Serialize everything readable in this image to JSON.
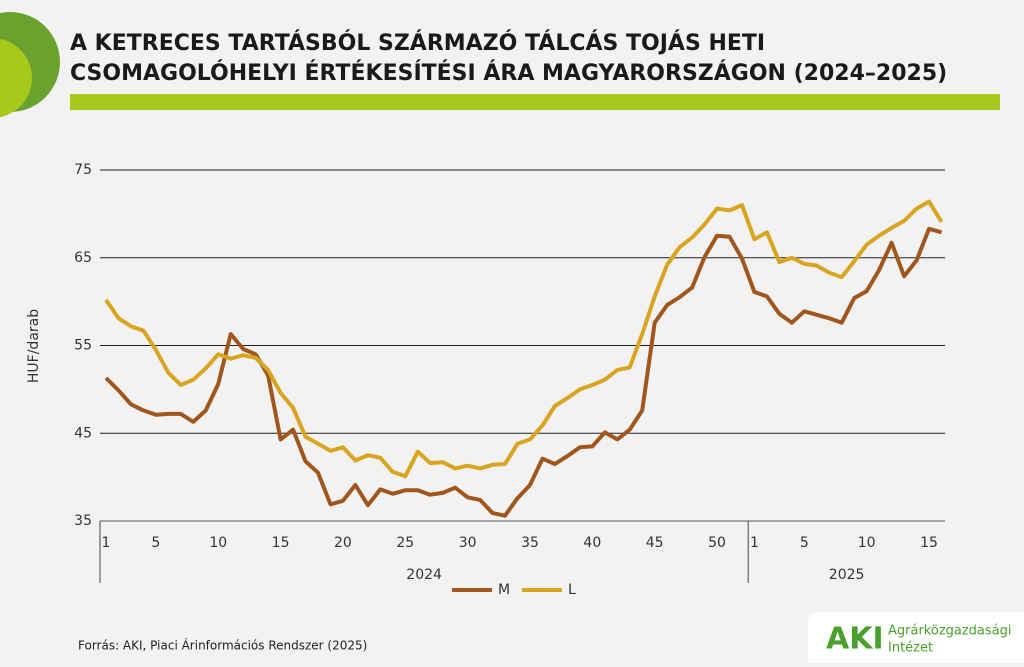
{
  "chart_data": {
    "type": "line",
    "title": [
      "A KETRECES TARTÁSBÓL SZÁRMAZÓ TÁLCÁS TOJÁS HETI",
      "CSOMAGOLÓHELYI ÉRTÉKESÍTÉSI ÁRA MAGYARORSZÁGON (2024–2025)"
    ],
    "y_label": "HUF/darab",
    "source": "Forrás: AKI, Piaci Árinformációs Rendszer (2025)",
    "logo": {
      "mark": "AKI",
      "lines": [
        "Agrárközgazdasági",
        "Intézet"
      ]
    },
    "categories": [
      "1",
      null,
      null,
      null,
      "5",
      null,
      null,
      null,
      null,
      "10",
      null,
      null,
      null,
      null,
      "15",
      null,
      null,
      null,
      null,
      "20",
      null,
      null,
      null,
      null,
      "25",
      null,
      null,
      null,
      null,
      "30",
      null,
      null,
      null,
      null,
      "35",
      null,
      null,
      null,
      null,
      "40",
      null,
      null,
      null,
      null,
      "45",
      null,
      null,
      null,
      null,
      "50",
      null,
      null,
      "1",
      null,
      null,
      null,
      "5",
      null,
      null,
      null,
      null,
      "10",
      null,
      null,
      null,
      null,
      "15",
      null
    ],
    "groups": [
      {
        "name": "2024",
        "count": 52
      },
      {
        "name": "2025",
        "count": 16
      }
    ],
    "series": [
      {
        "name": "M",
        "color": "#a0561c",
        "values": [
          51.3,
          49.9,
          48.3,
          47.6,
          47.1,
          47.2,
          47.2,
          46.3,
          47.6,
          50.6,
          56.3,
          54.6,
          54.0,
          51.6,
          44.3,
          45.4,
          41.8,
          40.5,
          36.9,
          37.3,
          39.1,
          36.8,
          38.6,
          38.1,
          38.5,
          38.5,
          38.0,
          38.2,
          38.8,
          37.7,
          37.4,
          35.9,
          35.6,
          37.6,
          39.1,
          42.1,
          41.5,
          42.4,
          43.4,
          43.5,
          45.1,
          44.3,
          45.4,
          47.6,
          57.6,
          59.6,
          60.5,
          61.6,
          65.1,
          67.5,
          67.4,
          64.9,
          61.1,
          60.6,
          58.6,
          57.6,
          58.9,
          58.5,
          58.1,
          57.6,
          60.4,
          61.2,
          63.6,
          66.7,
          62.9,
          64.7,
          68.3,
          67.9
        ]
      },
      {
        "name": "L",
        "color": "#d9a520",
        "values": [
          60.2,
          58.1,
          57.2,
          56.7,
          54.5,
          51.9,
          50.5,
          51.1,
          52.4,
          54.0,
          53.5,
          53.9,
          53.6,
          52.2,
          49.6,
          47.9,
          44.6,
          43.8,
          43.0,
          43.4,
          41.9,
          42.5,
          42.2,
          40.6,
          40.1,
          42.9,
          41.6,
          41.7,
          41.0,
          41.3,
          41.0,
          41.4,
          41.5,
          43.8,
          44.3,
          45.9,
          48.1,
          49.0,
          50.0,
          50.5,
          51.1,
          52.2,
          52.5,
          56.3,
          60.6,
          64.2,
          66.2,
          67.3,
          68.8,
          70.6,
          70.4,
          71.0,
          67.1,
          67.9,
          64.5,
          65.0,
          64.3,
          64.1,
          63.3,
          62.8,
          64.6,
          66.5,
          67.5,
          68.4,
          69.2,
          70.6,
          71.4,
          69.1
        ]
      }
    ],
    "ylim": [
      35,
      75
    ],
    "yticks": [
      35,
      45,
      55,
      65,
      75
    ],
    "grid": true,
    "legend": "bottom"
  }
}
